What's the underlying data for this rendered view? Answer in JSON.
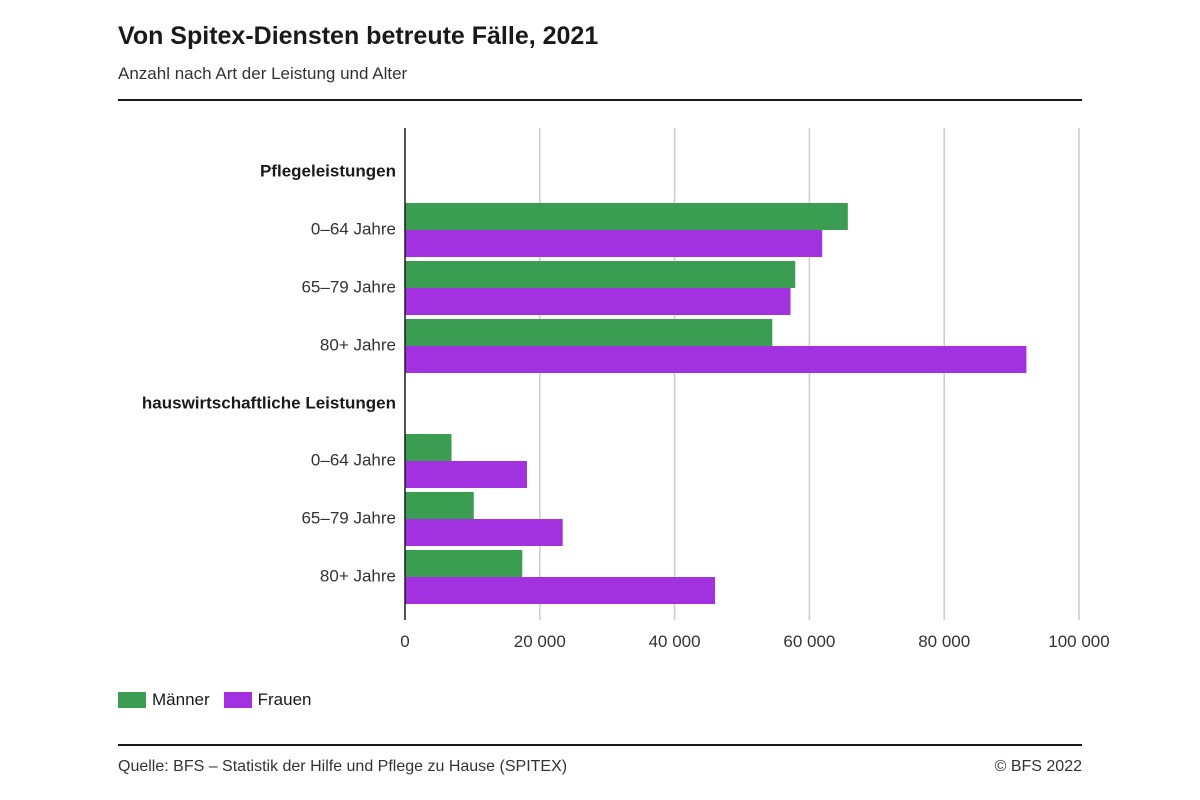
{
  "title": "Von Spitex-Diensten betreute Fälle, 2021",
  "subtitle": "Anzahl nach Art der Leistung und Alter",
  "source": "Quelle: BFS – Statistik der Hilfe und Pflege zu Hause (SPITEX)",
  "copyright": "© BFS 2022",
  "colors": {
    "maenner": "#3a9d52",
    "frauen": "#a232e0",
    "grid": "#cccccc",
    "axis": "#1a1a1a"
  },
  "chart_data": {
    "type": "bar",
    "orientation": "horizontal",
    "groups": [
      {
        "label": "Pflegeleistungen",
        "categories": [
          "0–64 Jahre",
          "65–79 Jahre",
          "80+ Jahre"
        ],
        "series": [
          {
            "name": "Männer",
            "values": [
              65700,
              57900,
              54500
            ]
          },
          {
            "name": "Frauen",
            "values": [
              61900,
              57200,
              92200
            ]
          }
        ]
      },
      {
        "label": "hauswirtschaftliche Leistungen",
        "categories": [
          "0–64 Jahre",
          "65–79 Jahre",
          "80+ Jahre"
        ],
        "series": [
          {
            "name": "Männer",
            "values": [
              6900,
              10200,
              17400
            ]
          },
          {
            "name": "Frauen",
            "values": [
              18100,
              23400,
              46000
            ]
          }
        ]
      }
    ],
    "xlim": [
      0,
      100000
    ],
    "xticks": [
      0,
      20000,
      40000,
      60000,
      80000,
      100000
    ],
    "xtick_labels": [
      "0",
      "20 000",
      "40 000",
      "60 000",
      "80 000",
      "100 000"
    ],
    "grid": true,
    "legend_position": "bottom-left",
    "legend": [
      "Männer",
      "Frauen"
    ]
  }
}
